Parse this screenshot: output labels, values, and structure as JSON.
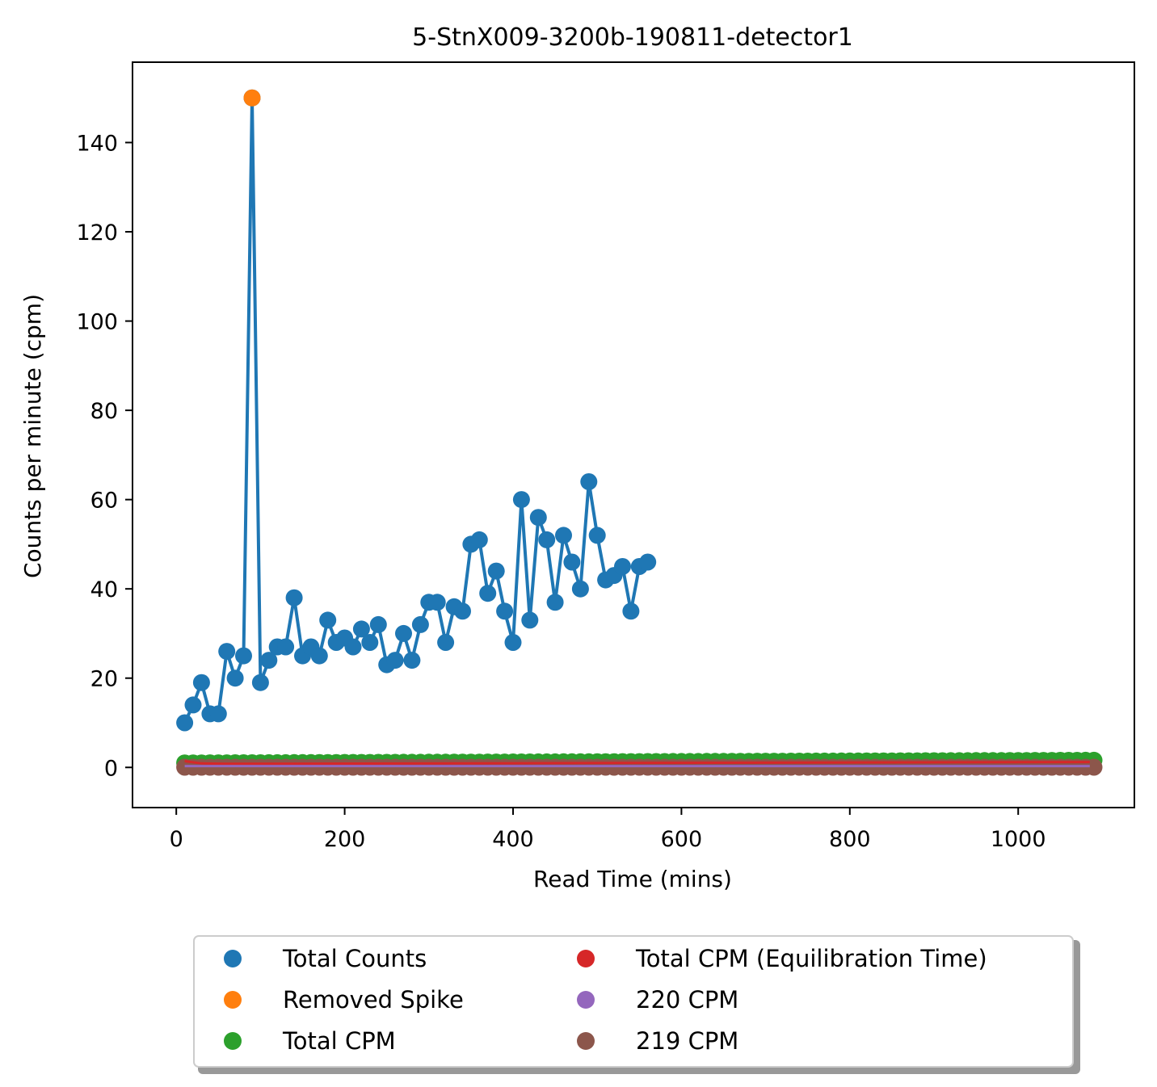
{
  "chart_data": {
    "type": "line",
    "title": "5-StnX009-3200b-190811-detector1",
    "xlabel": "Read Time (mins)",
    "ylabel": "Counts per minute (cpm)",
    "xlim": [
      -52,
      1138
    ],
    "ylim": [
      -9,
      158
    ],
    "xticks": [
      0,
      200,
      400,
      600,
      800,
      1000
    ],
    "yticks": [
      0,
      20,
      40,
      60,
      80,
      100,
      120,
      140
    ],
    "grid": false,
    "legend_position": "bottom",
    "legend_columns": 2,
    "series": [
      {
        "name": "Total Counts",
        "color": "#1f77b4",
        "style": "line+markers",
        "x": [
          10,
          20,
          30,
          40,
          50,
          60,
          70,
          80,
          90,
          100,
          110,
          120,
          130,
          140,
          150,
          160,
          170,
          180,
          190,
          200,
          210,
          220,
          230,
          240,
          250,
          260,
          270,
          280,
          290,
          300,
          310,
          320,
          330,
          340,
          350,
          360,
          370,
          380,
          390,
          400,
          410,
          420,
          430,
          440,
          450,
          460,
          470,
          480,
          490,
          500,
          510,
          520,
          530,
          540,
          550,
          560
        ],
        "y": [
          10,
          14,
          19,
          12,
          12,
          26,
          20,
          25,
          150,
          19,
          24,
          27,
          27,
          38,
          25,
          27,
          25,
          33,
          28,
          29,
          27,
          31,
          28,
          32,
          23,
          24,
          30,
          24,
          32,
          37,
          37,
          28,
          36,
          35,
          50,
          51,
          39,
          44,
          35,
          28,
          60,
          33,
          56,
          51,
          37,
          52,
          46,
          40,
          64,
          52,
          42,
          43,
          45,
          35,
          45,
          46
        ]
      },
      {
        "name": "Removed Spike",
        "color": "#ff7f0e",
        "style": "markers",
        "x": [
          90
        ],
        "y": [
          150
        ]
      },
      {
        "name": "Total CPM",
        "color": "#2ca02c",
        "style": "markers",
        "x_start": 10,
        "x_end": 1085,
        "x_step": 10,
        "y_start": 1.0,
        "y_end": 1.6
      },
      {
        "name": "Total CPM (Equilibration Time)",
        "color": "#d62728",
        "style": "line",
        "x": [
          10,
          30,
          60,
          1085
        ],
        "y": [
          1.4,
          0.9,
          0.8,
          1.2
        ]
      },
      {
        "name": "220 CPM",
        "color": "#9467bd",
        "style": "line",
        "x": [
          10,
          1085
        ],
        "y": [
          0.3,
          0.3
        ]
      },
      {
        "name": "219 CPM",
        "color": "#8c564b",
        "style": "markers",
        "x_start": 10,
        "x_end": 1085,
        "x_step": 10,
        "y_start": 0.05,
        "y_end": 0.05
      }
    ]
  }
}
